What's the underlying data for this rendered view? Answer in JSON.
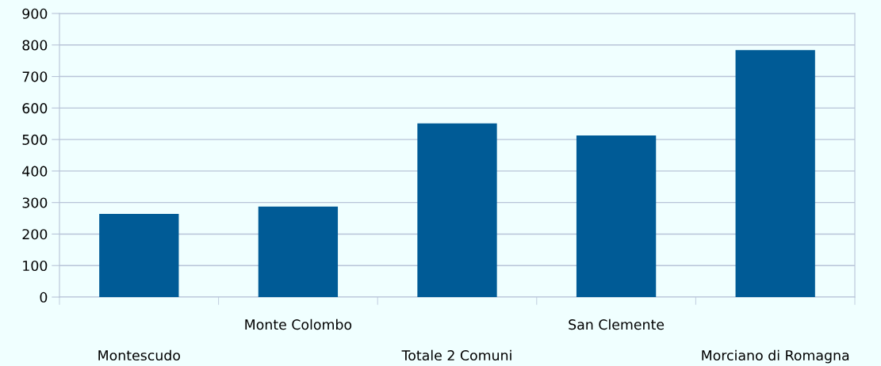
{
  "chart_data": {
    "type": "bar",
    "categories": [
      "Montescudo",
      "Monte Colombo",
      "Totale 2 Comuni",
      "San Clemente",
      "Morciano di Romagna"
    ],
    "values": [
      264,
      287,
      551,
      513,
      784
    ],
    "color": "#005b96",
    "ylim": [
      0,
      900
    ],
    "yticks": [
      0,
      100,
      200,
      300,
      400,
      500,
      600,
      700,
      800,
      900
    ],
    "grid": "y",
    "legend": false
  }
}
